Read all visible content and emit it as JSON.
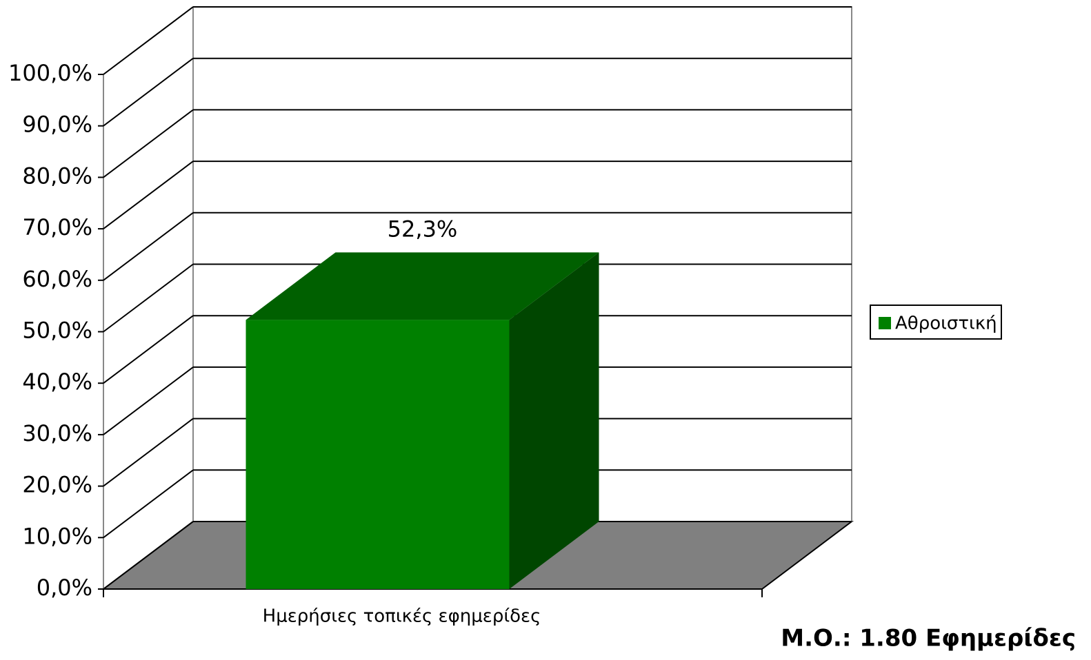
{
  "chart_data": {
    "type": "bar3d",
    "categories": [
      "Ημερήσιες τοπικές εφημερίδες"
    ],
    "series": [
      {
        "name": "Αθροιστική",
        "color": "#008000",
        "values": [
          52.3
        ],
        "value_labels": [
          "52,3%"
        ]
      }
    ],
    "ylim": [
      0,
      100
    ],
    "yticks": [
      {
        "value": 0,
        "label": "0,0%"
      },
      {
        "value": 10,
        "label": "10,0%"
      },
      {
        "value": 20,
        "label": "20,0%"
      },
      {
        "value": 30,
        "label": "30,0%"
      },
      {
        "value": 40,
        "label": "40,0%"
      },
      {
        "value": 50,
        "label": "50,0%"
      },
      {
        "value": 60,
        "label": "60,0%"
      },
      {
        "value": 70,
        "label": "70,0%"
      },
      {
        "value": 80,
        "label": "80,0%"
      },
      {
        "value": 90,
        "label": "90,0%"
      },
      {
        "value": 100,
        "label": "100,0%"
      }
    ],
    "grid": true,
    "legend": "right",
    "annotation": "Μ.Ο.: 1.80 Εφημερίδες"
  }
}
